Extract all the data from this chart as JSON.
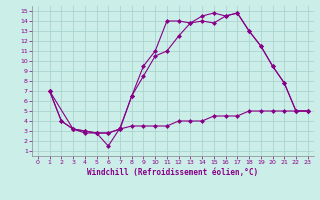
{
  "xlabel": "Windchill (Refroidissement éolien,°C)",
  "bg_color": "#cceee8",
  "grid_color": "#aad4ce",
  "line_color": "#880088",
  "xlim": [
    -0.5,
    23.5
  ],
  "ylim": [
    0.5,
    15.5
  ],
  "xticks": [
    0,
    1,
    2,
    3,
    4,
    5,
    6,
    7,
    8,
    9,
    10,
    11,
    12,
    13,
    14,
    15,
    16,
    17,
    18,
    19,
    20,
    21,
    22,
    23
  ],
  "yticks": [
    1,
    2,
    3,
    4,
    5,
    6,
    7,
    8,
    9,
    10,
    11,
    12,
    13,
    14,
    15
  ],
  "line1_x": [
    1,
    2,
    3,
    4,
    5,
    6,
    7,
    8,
    9,
    10,
    11,
    12,
    13,
    14,
    15,
    16,
    17,
    18,
    19,
    20,
    21,
    22,
    23
  ],
  "line1_y": [
    7,
    4,
    3.2,
    3.0,
    2.8,
    2.8,
    3.2,
    3.5,
    3.5,
    3.5,
    3.5,
    4.0,
    4.0,
    4.0,
    4.5,
    4.5,
    4.5,
    5.0,
    5.0,
    5.0,
    5.0,
    5.0,
    5.0
  ],
  "line2_x": [
    1,
    2,
    3,
    4,
    5,
    6,
    7,
    8,
    9,
    10,
    11,
    12,
    13,
    14,
    15,
    16,
    17,
    18,
    19,
    20,
    21,
    22,
    23
  ],
  "line2_y": [
    7,
    4,
    3.2,
    3.0,
    2.8,
    2.8,
    3.2,
    6.5,
    8.5,
    10.5,
    11.0,
    12.5,
    13.8,
    14.0,
    13.8,
    14.5,
    14.8,
    13.0,
    11.5,
    9.5,
    7.8,
    5.0,
    5.0
  ],
  "line3_x": [
    1,
    3,
    4,
    5,
    6,
    7,
    8,
    9,
    10,
    11,
    12,
    13,
    14,
    15,
    16,
    17,
    18,
    19,
    20,
    21,
    22,
    23
  ],
  "line3_y": [
    7,
    3.2,
    2.8,
    2.8,
    1.5,
    3.3,
    6.5,
    9.5,
    11.0,
    14.0,
    14.0,
    13.8,
    14.5,
    14.8,
    14.5,
    14.8,
    13.0,
    11.5,
    9.5,
    7.8,
    5.0,
    5.0
  ]
}
